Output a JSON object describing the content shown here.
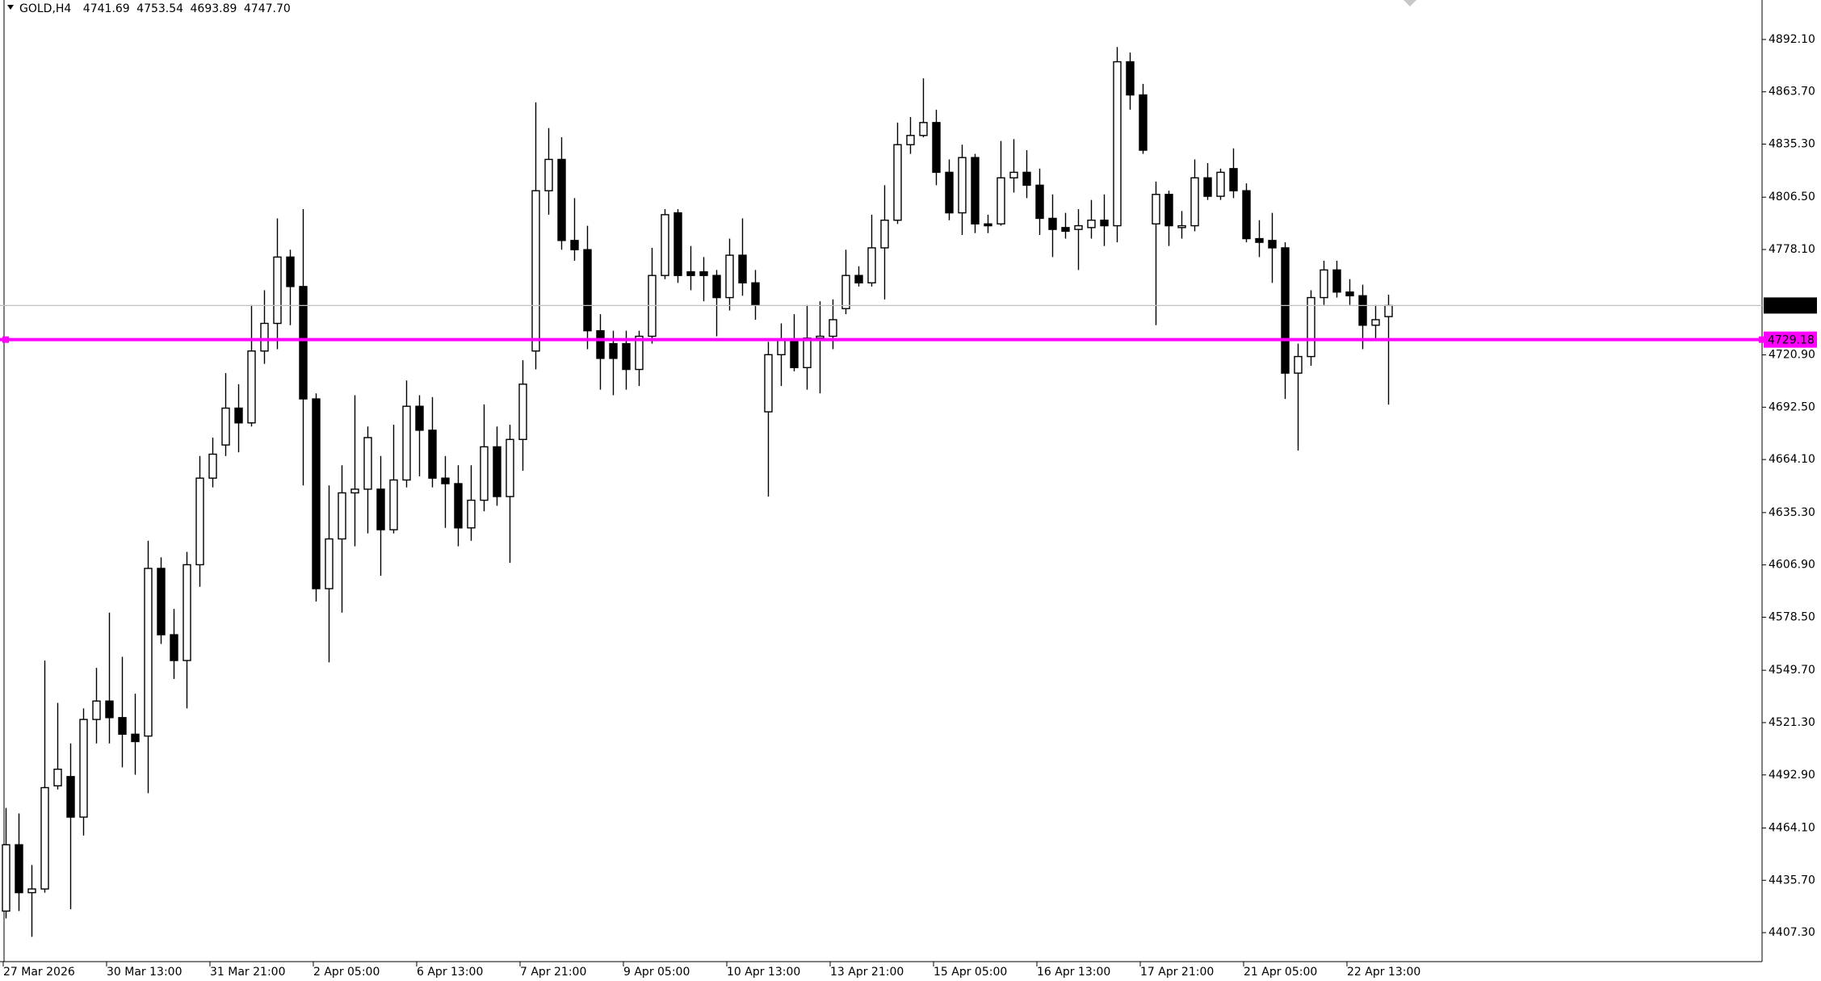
{
  "chart_data": {
    "type": "candlestick",
    "title": "GOLD,H4",
    "categories": [
      "27 Mar 2026",
      null,
      null,
      null,
      null,
      null,
      null,
      null,
      "30 Mar 13:00",
      null,
      null,
      null,
      null,
      null,
      null,
      null,
      "31 Mar 21:00",
      null,
      null,
      null,
      null,
      null,
      null,
      null,
      "2 Apr 05:00",
      null,
      null,
      null,
      null,
      null,
      null,
      null,
      "6 Apr 13:00",
      null,
      null,
      null,
      null,
      null,
      null,
      null,
      "7 Apr 21:00",
      null,
      null,
      null,
      null,
      null,
      null,
      null,
      "9 Apr 05:00",
      null,
      null,
      null,
      null,
      null,
      null,
      null,
      "10 Apr 13:00",
      null,
      null,
      null,
      null,
      null,
      null,
      null,
      "13 Apr 21:00",
      null,
      null,
      null,
      null,
      null,
      null,
      null,
      "15 Apr 05:00",
      null,
      null,
      null,
      null,
      null,
      null,
      null,
      "16 Apr 13:00",
      null,
      null,
      null,
      null,
      null,
      null,
      null,
      "17 Apr 21:00",
      null,
      null,
      null,
      null,
      null,
      null,
      null,
      "21 Apr 05:00",
      null,
      null,
      null,
      null,
      null,
      null,
      null,
      "22 Apr 13:00",
      null,
      null,
      null
    ],
    "open": [
      4419,
      4455,
      4429,
      4431,
      4487,
      4492,
      4470,
      4523,
      4533,
      4524,
      4515,
      4514,
      4605,
      4569,
      4555,
      4607,
      4654,
      4672,
      4692,
      4684,
      4723,
      4738,
      4774,
      4758,
      4697,
      4594,
      4621,
      4646,
      4648,
      4648,
      4626,
      4653,
      4693,
      4680,
      4654,
      4651,
      4627,
      4642,
      4671,
      4644,
      4675,
      4723,
      4810,
      4827,
      4783,
      4778,
      4734,
      4727,
      4727,
      4713,
      4731,
      4764,
      4798,
      4766,
      4766,
      4764,
      4752,
      4775,
      4760,
      4690,
      4721,
      4729,
      4714,
      4730,
      4731,
      4746,
      4764,
      4760,
      4779,
      4794,
      4835,
      4840,
      4847,
      4820,
      4798,
      4828,
      4792,
      4792,
      4817,
      4820,
      4813,
      4795,
      4790,
      4789,
      4790,
      4794,
      4791,
      4880,
      4862,
      4792,
      4808,
      4790,
      4791,
      4817,
      4807,
      4822,
      4810,
      4784,
      4783,
      4779,
      4711,
      4720,
      4752,
      4767,
      4755,
      4753,
      4737,
      4741.69
    ],
    "high": [
      4475,
      4472,
      4444,
      4555,
      4532,
      4510,
      4529,
      4551,
      4581,
      4557,
      4537,
      4620,
      4611,
      4583,
      4614,
      4666,
      4676,
      4711,
      4705,
      4748,
      4756,
      4795,
      4778,
      4800,
      4700,
      4650,
      4661,
      4699,
      4682,
      4666,
      4683,
      4707,
      4699,
      4698,
      4666,
      4661,
      4661,
      4694,
      4682,
      4683,
      4718,
      4858,
      4844,
      4839,
      4806,
      4791,
      4743,
      4734,
      4734,
      4734,
      4779,
      4800,
      4800,
      4780,
      4774,
      4767,
      4784,
      4795,
      4767,
      4728,
      4738,
      4743,
      4748,
      4750,
      4751,
      4778,
      4769,
      4797,
      4813,
      4847,
      4850,
      4871,
      4854,
      4827,
      4835,
      4830,
      4797,
      4837,
      4838,
      4832,
      4822,
      4808,
      4798,
      4800,
      4805,
      4808,
      4888,
      4885,
      4868,
      4815,
      4810,
      4799,
      4827,
      4825,
      4822,
      4833,
      4814,
      4794,
      4798,
      4782,
      4727,
      4756,
      4772,
      4772,
      4762,
      4759,
      4748,
      4753.54
    ],
    "low": [
      4415,
      4419,
      4405,
      4429,
      4485,
      4420,
      4460,
      4510,
      4510,
      4497,
      4493,
      4483,
      4564,
      4545,
      4529,
      4595,
      4649,
      4666,
      4668,
      4682,
      4716,
      4724,
      4737,
      4650,
      4587,
      4554,
      4581,
      4617,
      4624,
      4601,
      4624,
      4649,
      4655,
      4649,
      4627,
      4617,
      4620,
      4636,
      4639,
      4608,
      4658,
      4713,
      4797,
      4778,
      4772,
      4724,
      4702,
      4699,
      4702,
      4704,
      4727,
      4762,
      4760,
      4756,
      4750,
      4731,
      4745,
      4753,
      4740,
      4644,
      4704,
      4712,
      4702,
      4700,
      4724,
      4743,
      4758,
      4758,
      4751,
      4792,
      4830,
      4839,
      4813,
      4794,
      4786,
      4787,
      4787,
      4791,
      4809,
      4806,
      4786,
      4774,
      4784,
      4767,
      4784,
      4780,
      4782,
      4854,
      4830,
      4737,
      4780,
      4784,
      4788,
      4805,
      4805,
      4806,
      4782,
      4774,
      4760,
      4697,
      4669,
      4715,
      4748,
      4752,
      4748,
      4724,
      4729,
      4693.89
    ],
    "close": [
      4455,
      4429,
      4431,
      4486,
      4496,
      4470,
      4523,
      4533,
      4524,
      4515,
      4511,
      4605,
      4569,
      4555,
      4607,
      4654,
      4667,
      4692,
      4684,
      4723,
      4738,
      4774,
      4758,
      4697,
      4594,
      4621,
      4646,
      4648,
      4676,
      4626,
      4653,
      4693,
      4680,
      4654,
      4651,
      4627,
      4642,
      4671,
      4644,
      4675,
      4705,
      4810,
      4827,
      4783,
      4778,
      4734,
      4719,
      4719,
      4713,
      4731,
      4764,
      4797,
      4764,
      4764,
      4764,
      4752,
      4775,
      4760,
      4748,
      4721,
      4729,
      4714,
      4730,
      4731,
      4740,
      4764,
      4760,
      4779,
      4794,
      4835,
      4840,
      4847,
      4820,
      4798,
      4828,
      4792,
      4791,
      4817,
      4820,
      4813,
      4795,
      4789,
      4788,
      4791,
      4794,
      4791,
      4880,
      4862,
      4832,
      4808,
      4791,
      4791,
      4817,
      4807,
      4820,
      4810,
      4784,
      4782,
      4779,
      4711,
      4720,
      4752,
      4767,
      4755,
      4753,
      4737,
      4740,
      4747.7
    ],
    "up_color": "#ffffff",
    "down_color": "#000000",
    "wick_color": "#000000",
    "ylim": [
      4391.56,
      4913.53
    ],
    "yticks": [
      {
        "value": 4892.1,
        "label": "4892.10"
      },
      {
        "value": 4863.7,
        "label": "4863.70"
      },
      {
        "value": 4835.3,
        "label": "4835.30"
      },
      {
        "value": 4806.5,
        "label": "4806.50"
      },
      {
        "value": 4778.1,
        "label": "4778.10"
      },
      {
        "value": 4720.9,
        "label": "4720.90"
      },
      {
        "value": 4692.5,
        "label": "4692.50"
      },
      {
        "value": 4664.1,
        "label": "4664.10"
      },
      {
        "value": 4635.3,
        "label": "4635.30"
      },
      {
        "value": 4606.9,
        "label": "4606.90"
      },
      {
        "value": 4578.5,
        "label": "4578.50"
      },
      {
        "value": 4549.7,
        "label": "4549.70"
      },
      {
        "value": 4521.3,
        "label": "4521.30"
      },
      {
        "value": 4492.9,
        "label": "4492.90"
      },
      {
        "value": 4464.1,
        "label": "4464.10"
      },
      {
        "value": 4435.7,
        "label": "4435.70"
      },
      {
        "value": 4407.3,
        "label": "4407.30"
      }
    ],
    "price_lines": [
      {
        "value": 4747.7,
        "label": "4747.70",
        "color": "#c0c0c0",
        "label_color": "#000000"
      },
      {
        "value": 4729.18,
        "label": "4729.18",
        "color": "#ff00ff",
        "label_color": "#ff00ff"
      }
    ]
  }
}
